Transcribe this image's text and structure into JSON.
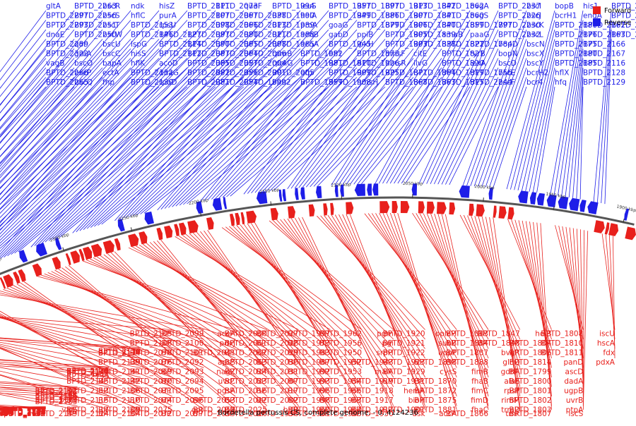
{
  "title": "Bordetella pertussis CS, complete genome. - 0..4124236",
  "colors": {
    "forward": "#e8201c",
    "reverse": "#1e1ee8",
    "backbone": "#555555"
  },
  "legend": [
    {
      "label": "Forward",
      "color": "#e8201c"
    },
    {
      "label": "Reverse",
      "color": "#1e1ee8"
    }
  ],
  "axis": {
    "start_kbp": 2550,
    "end_kbp": 1900,
    "ticks": [
      "2550 kbp",
      "2500 kbp",
      "2450 kbp",
      "2400 kbp",
      "2350 kbp",
      "2300 kbp",
      "2250 kbp",
      "2200 kbp",
      "2150 kbp",
      "2100 kbp",
      "2050 kbp",
      "2000 kbp",
      "1950 kbp",
      "1900 kbp"
    ]
  },
  "reverse_labels": [
    "gltA",
    "BPTD_2297",
    "BPTD_2293",
    "dnaE",
    "BPTD_2289",
    "BPTD_2322",
    "vagB",
    "BPTD_2266",
    "BPTD_2265",
    "BPTD_2263",
    "BPTD_2256",
    "BPTD_2251",
    "BPTD_2250",
    "qor",
    "greA",
    "bscO",
    "bscP",
    "bscQ",
    "bscR",
    "bscS",
    "bscT",
    "bscW",
    "bscU",
    "bscC",
    "bapA",
    "ectA",
    "fhp",
    "ndk",
    "hflC",
    "BPTD_2153",
    "BPTD_2146",
    "ispG",
    "hisS",
    "hflK",
    "BPTD_2132",
    "BPTD_2130",
    "hisZ",
    "purA",
    "rpsU",
    "BPTD_2127",
    "BPTD_2114",
    "BPTD_2112",
    "acoD",
    "dnaG",
    "rpoD",
    "BPTD_2111",
    "BPTD_2107",
    "BPTD_2098",
    "BPTD_2097",
    "BPTD_2090",
    "BPTD_2087",
    "BPTD_2085",
    "BPTD_2082",
    "BPTD_2081",
    "BPTD_2073",
    "BPTD_2067",
    "BPTD_2066",
    "BPTD_2080",
    "BPTD_2065",
    "BPTD_2064",
    "BPTD_2057",
    "BPTD_2056",
    "BPTD_2054",
    "queF",
    "BPTD_2038",
    "BPTD_2013",
    "BPTD_2011",
    "BPTD_2008",
    "BPTD_2006",
    "BPTD_2004",
    "BPTD_2001",
    "BPTD_1999",
    "BPTD_1994",
    "BPTD_1990",
    "BPTD_1989",
    "BPTD_1988",
    "BPTD_1985",
    "rpmB",
    "rpmG",
    "BPTD_2005",
    "bph2",
    "leuS",
    "holA",
    "proA",
    "acnB",
    "acnA",
    "BPTD_1982",
    "BPTD_1981",
    "efp",
    "BPTD_1959",
    "BPTD_1957",
    "BPTD_1949",
    "goaG",
    "gabD",
    "BPTD_1945",
    "bfrI",
    "BPTD_1910",
    "BPTD_1909",
    "BPTD_1908",
    "BPTD_1897",
    "BPTD_1886",
    "BPTD_1879",
    "ppiB",
    "lpxH",
    "BPTD_1873",
    "BPTD_1926",
    "BPTD_1925",
    "hmsH",
    "BPTD_1913",
    "BPTD_1907",
    "BPTD_1906",
    "BPTD_1905",
    "BPTD_1903",
    "hmsF",
    "hmsR",
    "BPTD_1871",
    "BPTD_1868",
    "BPTD_1842",
    "BPTD_1841",
    "BPTD_1840",
    "BPTD_1839",
    "BPTD_1838",
    "citE",
    "ilvG",
    "BPTD_1864",
    "BPTD_1863",
    "BPTD_1862",
    "BPTD_1860",
    "BPTD_1859",
    "amaB",
    "BPTD_1822",
    "BPTD_1821",
    "BPTD_1820",
    "BPTD_1819",
    "BPTD_1815",
    "bvgA",
    "bvgS",
    "BPTD_1797",
    "paaG",
    "BPTD_1784",
    "tyrB",
    "lexA",
    "BPTD_1756",
    "BPTD_2244",
    "BPTD_2237",
    "BPTD_2226",
    "BPTD_2230",
    "BPTD_2232",
    "bopD",
    "bopN",
    "bscD",
    "bscE",
    "bscF",
    "bscI",
    "bscJ",
    "bscK",
    "bscL",
    "bscN",
    "bscX",
    "bscY",
    "bcrH2",
    "bcr4",
    "bopB",
    "bcrH1",
    "BPTD_2188",
    "BPTD_2176",
    "BPTD_2175",
    "BPTD_2180",
    "BPTD_2185",
    "hflX",
    "hfq",
    "his1",
    "engA",
    "BPTD_2162",
    "BPTD_2163",
    "BPTD_2166",
    "BPTD_2167",
    "BPTD_2116",
    "BPTD_2128",
    "BPTD_2129",
    "BPTD_2118",
    "BPTD_2091",
    "BPTD_2014",
    "BPTD_2020"
  ],
  "forward_labels": [
    "waaF",
    "hemF",
    "BPTD_2255",
    "nadD",
    "BPTD_2254",
    "BPTD_2227",
    "BPTD_2258",
    "BPTD_2231",
    "purD",
    "bopD",
    "brpL",
    "BPTD_2238",
    "BPTD_2187",
    "BPTD_2239",
    "BPTD_2229",
    "BPTD_2178",
    "BPTD_2181",
    "BPTD_2184",
    "BPTD_2172",
    "BPTD_2182",
    "BPTD_2183",
    "bcrD",
    "BPTD_2189",
    "BPTD_2195",
    "alr",
    "BPTD_2191",
    "BPTD_2192",
    "BPTD_2173",
    "valS",
    "BPTD_2149",
    "BPTD_2133",
    "bioA",
    "BPTD_2147",
    "BPTD_2138",
    "BPTD_2140",
    "BPTD_2145",
    "BPTD_2113",
    "BPTD_2115",
    "BPTD_2117",
    "BPTD_2124",
    "BPTD_2134",
    "BPTD_2136",
    "BPTD_2137",
    "BPTD_2139",
    "BPTD_2141",
    "BPTD_2142",
    "BPTD_2106",
    "BPTD_2110",
    "BPTD_2109",
    "BPTD_2104",
    "BPTD_2105",
    "BPTD_2108",
    "BPTD_2078",
    "BPTD_2076",
    "BPTD_2069",
    "BPTD_2070",
    "BPTD_2071",
    "BPTD_2074",
    "BPTD_2075",
    "BPTD_2072",
    "BPTD_2099",
    "BPTD_2100",
    "BPTD_2101",
    "BPTD_2092",
    "BPTD_2093",
    "BPTD_2094",
    "BPTD_2095",
    "BPTD_2096",
    "gor",
    "BPTD_2077",
    "aceA",
    "pdxJ",
    "BPTD_2041",
    "apsS",
    "nagZ",
    "uvrC",
    "pgsA",
    "BPTD_2053",
    "BPTD_2058",
    "BPTD_2059",
    "BPTD_2060",
    "BPTD_2061",
    "BPTD_2062",
    "BPTD_2063",
    "BPTD_2024",
    "BPTD_2023",
    "BPTD_2016",
    "BPTD_2022",
    "BPTD_2025",
    "BPTD_2026",
    "BPTD_2027",
    "BPTD_2028",
    "BPTD_2029",
    "BPTD_2030",
    "BPTD_2031",
    "BPTD_2007",
    "BPTD_2017",
    "BPTD_2002",
    "brfB",
    "BPTD_1996",
    "BPTD_1997",
    "BPTD_1973",
    "BPTD_1983",
    "BPTD_1987",
    "BPTD_1992",
    "BPTD_1993",
    "BPTD_1995",
    "BPTD_1998",
    "BPTD_1960",
    "BPTD_1961",
    "BPTD_1962",
    "BPTD_1956",
    "BPTD_1950",
    "BPTD_1952",
    "BPTD_1953",
    "BPTD_1954",
    "BPTD_1955",
    "BPTD_1963",
    "BPTD_1964",
    "BPTD_1965",
    "pgm",
    "pgi",
    "srpH",
    "BPTD_1943",
    "maiA",
    "BPTD_1919",
    "BPTD_1918",
    "BPTD_1917",
    "BPTD_1911",
    "BPTD_1930",
    "BPTD_1920",
    "BPTD_1921",
    "BPTD_1922",
    "BPTD_1923",
    "BPTD_1929",
    "BPTD_1931",
    "hemA",
    "bioH",
    "BPTD_1901",
    "ask",
    "oplaH",
    "suhB",
    "uppP",
    "BPTD_1898",
    "cysS",
    "BPTD_1870",
    "BPTD_1872",
    "BPTD_1875",
    "BPTD_1881",
    "accA",
    "BPTD_1883",
    "BPTD_1884",
    "BPTD_1887",
    "BPTD_1888",
    "fimB",
    "fhaB",
    "fimC",
    "fimD",
    "fhaC",
    "BPTD_1866",
    "BPTD_1847",
    "BPTD_1848",
    "bvgR",
    "glnQ",
    "gdhA",
    "alaS",
    "rpsP",
    "rimM",
    "trmD",
    "tmk",
    "holB",
    "BPTD_1804",
    "BPTD_1806",
    "BPTD_1814",
    "BPTD_1799",
    "BPTD_1800",
    "BPTD_1801",
    "BPTD_1802",
    "BPTD_1803",
    "BPTD_1807",
    "BPTD_1808",
    "BPTD_1810",
    "BPTD_1811",
    "panD",
    "ascD",
    "dadA",
    "ugpB",
    "uvrB",
    "ptpA",
    "iscS",
    "iscU",
    "hscA",
    "fdx",
    "pdxA"
  ]
}
